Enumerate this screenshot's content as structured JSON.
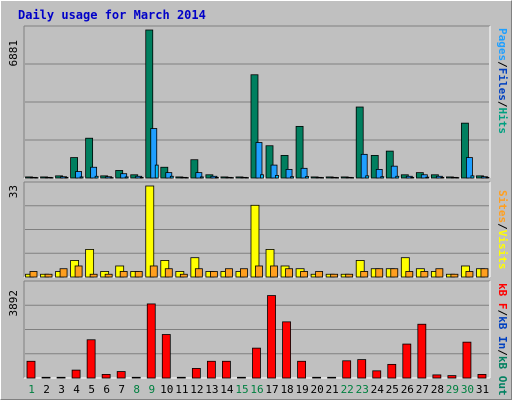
{
  "title": "Daily usage for March 2014",
  "colors": {
    "pages": "#007f5f",
    "files": "#1f9fff",
    "hits": "#00a080",
    "visits": "#ffff00",
    "sites": "#ff9f1f",
    "kbout": "#008060",
    "kbin": "#0040c0",
    "kbf": "#ff0000",
    "grid": "#808080",
    "panel_bg": "#c0c0c0"
  },
  "right_labels": {
    "top": [
      "Pages",
      "/",
      "Files",
      "/",
      "Hits"
    ],
    "mid": [
      "Sites",
      "/",
      "Visits"
    ],
    "bot": [
      "kB F",
      "/",
      "kB In",
      "/",
      "kB Out"
    ]
  },
  "chart_data": [
    {
      "type": "bar",
      "panel": "hits",
      "ymax_label": "6881",
      "ylim": [
        0,
        6881
      ],
      "categories": [
        "1",
        "2",
        "3",
        "4",
        "5",
        "6",
        "7",
        "8",
        "9",
        "10",
        "11",
        "12",
        "13",
        "14",
        "15",
        "16",
        "17",
        "18",
        "19",
        "20",
        "21",
        "22",
        "23",
        "24",
        "25",
        "26",
        "27",
        "28",
        "29",
        "30",
        "31"
      ],
      "series": [
        {
          "name": "Hits",
          "values": [
            50,
            50,
            100,
            950,
            1850,
            100,
            350,
            150,
            6881,
            500,
            50,
            850,
            150,
            50,
            50,
            4800,
            1500,
            1050,
            2400,
            50,
            50,
            50,
            3300,
            1050,
            1250,
            150,
            250,
            150,
            50,
            2550,
            100
          ]
        },
        {
          "name": "Files",
          "values": [
            30,
            30,
            60,
            300,
            500,
            60,
            200,
            80,
            2300,
            250,
            30,
            250,
            80,
            30,
            30,
            1650,
            600,
            400,
            450,
            30,
            30,
            30,
            1100,
            400,
            550,
            80,
            150,
            80,
            30,
            950,
            60
          ]
        },
        {
          "name": "Pages",
          "values": [
            20,
            20,
            30,
            50,
            80,
            20,
            50,
            30,
            600,
            80,
            20,
            50,
            30,
            20,
            20,
            150,
            120,
            60,
            70,
            20,
            20,
            20,
            100,
            60,
            80,
            30,
            40,
            30,
            20,
            100,
            30
          ]
        }
      ]
    },
    {
      "type": "bar",
      "panel": "visits",
      "ymax_label": "33",
      "ylim": [
        0,
        33
      ],
      "categories": [
        "1",
        "2",
        "3",
        "4",
        "5",
        "6",
        "7",
        "8",
        "9",
        "10",
        "11",
        "12",
        "13",
        "14",
        "15",
        "16",
        "17",
        "18",
        "19",
        "20",
        "21",
        "22",
        "23",
        "24",
        "25",
        "26",
        "27",
        "28",
        "29",
        "30",
        "31"
      ],
      "series": [
        {
          "name": "Visits",
          "values": [
            1,
            1,
            2,
            6,
            10,
            2,
            4,
            2,
            33,
            6,
            2,
            7,
            2,
            2,
            2,
            26,
            10,
            4,
            3,
            1,
            1,
            1,
            6,
            3,
            3,
            7,
            3,
            2,
            1,
            4,
            3
          ]
        },
        {
          "name": "Sites",
          "values": [
            2,
            1,
            3,
            4,
            1,
            1,
            2,
            2,
            4,
            3,
            1,
            3,
            2,
            3,
            3,
            4,
            4,
            3,
            2,
            2,
            1,
            1,
            2,
            3,
            3,
            2,
            2,
            3,
            1,
            2,
            3
          ]
        }
      ]
    },
    {
      "type": "bar",
      "panel": "kbytes",
      "ymax_label": "3892",
      "ylim": [
        0,
        3892
      ],
      "categories": [
        "1",
        "2",
        "3",
        "4",
        "5",
        "6",
        "7",
        "8",
        "9",
        "10",
        "11",
        "12",
        "13",
        "14",
        "15",
        "16",
        "17",
        "18",
        "19",
        "20",
        "21",
        "22",
        "23",
        "24",
        "25",
        "26",
        "27",
        "28",
        "29",
        "30",
        "31"
      ],
      "series": [
        {
          "name": "kB F",
          "values": [
            700,
            30,
            30,
            330,
            1600,
            150,
            270,
            30,
            3100,
            1820,
            30,
            400,
            700,
            700,
            30,
            1250,
            3450,
            2350,
            700,
            30,
            30,
            720,
            770,
            300,
            570,
            1420,
            2250,
            130,
            100,
            1500,
            150
          ]
        }
      ]
    }
  ],
  "x_label_colors": [
    "#008040",
    "#000000",
    "#000000",
    "#000000",
    "#000000",
    "#000000",
    "#000000",
    "#008040",
    "#008040",
    "#000000",
    "#000000",
    "#000000",
    "#000000",
    "#000000",
    "#008040",
    "#008040",
    "#000000",
    "#000000",
    "#000000",
    "#000000",
    "#000000",
    "#008040",
    "#008040",
    "#000000",
    "#000000",
    "#000000",
    "#000000",
    "#000000",
    "#008040",
    "#008040",
    "#000000"
  ]
}
